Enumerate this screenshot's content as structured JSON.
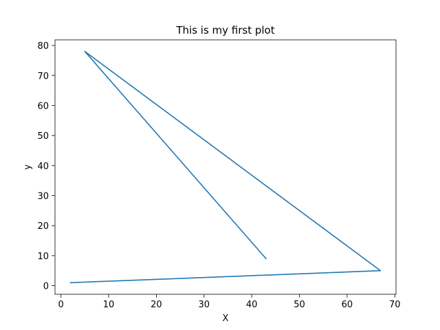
{
  "chart_data": {
    "type": "line",
    "title": "This is my first plot",
    "xlabel": "X",
    "ylabel": "y",
    "xlim": [
      -1.25,
      70.25
    ],
    "ylim": [
      -2.85,
      81.85
    ],
    "xticks": [
      0,
      10,
      20,
      30,
      40,
      50,
      60,
      70
    ],
    "yticks": [
      0,
      10,
      20,
      30,
      40,
      50,
      60,
      70,
      80
    ],
    "grid": false,
    "series": [
      {
        "color": "#1f77b4",
        "x": [
          43,
          5,
          67,
          2
        ],
        "y": [
          9,
          78,
          5,
          1
        ]
      }
    ]
  }
}
